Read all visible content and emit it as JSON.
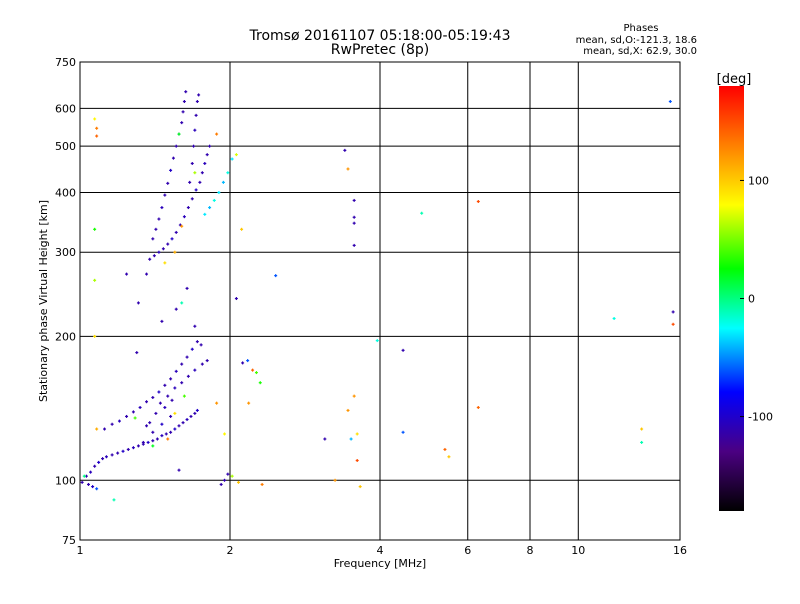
{
  "chart_data": {
    "type": "scatter",
    "title": "Tromsø 20161107 05:18:00-05:19:43",
    "subtitle": "RwPretec (8p)",
    "xlabel": "Frequency [MHz]",
    "ylabel": "Stationary phase Virtual Height [km]",
    "x_scale": "log",
    "y_scale": "log",
    "xlim": [
      1,
      16
    ],
    "ylim": [
      75,
      750
    ],
    "x_ticks": [
      1,
      2,
      4,
      6,
      8,
      10,
      16
    ],
    "x_tick_labels": [
      "1",
      "2",
      "4",
      "6",
      "8",
      "10",
      "16"
    ],
    "y_ticks": [
      75,
      100,
      200,
      300,
      400,
      500,
      600,
      750
    ],
    "y_tick_labels": [
      "75",
      "100",
      "200",
      "300",
      "400",
      "500",
      "600",
      "750"
    ],
    "grid": true,
    "stats": {
      "heading": "Phases",
      "line_o": "mean, sd,O:-121.3, 18.6",
      "line_x": "mean, sd,X:  62.9, 30.0"
    },
    "colorbar": {
      "label": "[deg]",
      "range": [
        -180,
        180
      ],
      "ticks": [
        100,
        0,
        -100
      ],
      "tick_labels": [
        "100",
        "0",
        "-100"
      ],
      "colors": [
        "#000000",
        "#4b0082",
        "#0000ff",
        "#00ffff",
        "#00ff00",
        "#ffff00",
        "#ff8000",
        "#ff0000"
      ]
    },
    "points": [
      [
        1.01,
        99,
        -110
      ],
      [
        1.03,
        102,
        -110
      ],
      [
        1.05,
        104,
        -105
      ],
      [
        1.07,
        107,
        -110
      ],
      [
        1.09,
        109,
        -100
      ],
      [
        1.11,
        111,
        -110
      ],
      [
        1.13,
        112,
        -105
      ],
      [
        1.16,
        113,
        -110
      ],
      [
        1.19,
        114,
        -110
      ],
      [
        1.22,
        115,
        -100
      ],
      [
        1.25,
        116,
        -110
      ],
      [
        1.28,
        117,
        -105
      ],
      [
        1.31,
        118,
        -110
      ],
      [
        1.34,
        119,
        -110
      ],
      [
        1.37,
        120,
        -100
      ],
      [
        1.4,
        121,
        -110
      ],
      [
        1.43,
        122,
        -110
      ],
      [
        1.46,
        124,
        -105
      ],
      [
        1.49,
        125,
        -110
      ],
      [
        1.52,
        126,
        -110
      ],
      [
        1.55,
        128,
        -100
      ],
      [
        1.58,
        130,
        -110
      ],
      [
        1.61,
        132,
        -110
      ],
      [
        1.64,
        134,
        -105
      ],
      [
        1.67,
        136,
        -110
      ],
      [
        1.7,
        138,
        -110
      ],
      [
        1.72,
        140,
        -100
      ],
      [
        1.12,
        128,
        -110
      ],
      [
        1.16,
        131,
        -110
      ],
      [
        1.2,
        133,
        -105
      ],
      [
        1.24,
        136,
        -110
      ],
      [
        1.28,
        139,
        -110
      ],
      [
        1.32,
        142,
        -105
      ],
      [
        1.36,
        146,
        -110
      ],
      [
        1.4,
        149,
        -110
      ],
      [
        1.44,
        153,
        -100
      ],
      [
        1.48,
        158,
        -110
      ],
      [
        1.52,
        163,
        -110
      ],
      [
        1.56,
        169,
        -105
      ],
      [
        1.6,
        175,
        -110
      ],
      [
        1.64,
        181,
        -110
      ],
      [
        1.68,
        188,
        -100
      ],
      [
        1.72,
        195,
        -110
      ],
      [
        1.75,
        192,
        -110
      ],
      [
        1.45,
        145,
        -110
      ],
      [
        1.5,
        150,
        -110
      ],
      [
        1.55,
        156,
        -105
      ],
      [
        1.6,
        160,
        -110
      ],
      [
        1.65,
        165,
        -110
      ],
      [
        1.7,
        170,
        -105
      ],
      [
        1.76,
        175,
        -110
      ],
      [
        1.8,
        178,
        -110
      ],
      [
        1.38,
        132,
        -110
      ],
      [
        1.42,
        138,
        -110
      ],
      [
        1.48,
        142,
        -105
      ],
      [
        1.53,
        147,
        -110
      ],
      [
        1.34,
        120,
        -110
      ],
      [
        1.4,
        126,
        -110
      ],
      [
        1.46,
        131,
        -100
      ],
      [
        1.52,
        136,
        -110
      ],
      [
        1.02,
        102,
        0
      ],
      [
        1.04,
        98,
        -110
      ],
      [
        1.06,
        97,
        -100
      ],
      [
        1.08,
        96,
        -60
      ],
      [
        1.17,
        91,
        -10
      ],
      [
        1.08,
        128,
        110
      ],
      [
        1.29,
        135,
        40
      ],
      [
        1.4,
        118,
        20
      ],
      [
        1.5,
        122,
        130
      ],
      [
        1.55,
        138,
        90
      ],
      [
        1.62,
        150,
        40
      ],
      [
        1.36,
        130,
        -110
      ],
      [
        1.3,
        185,
        -110
      ],
      [
        1.58,
        105,
        -110
      ],
      [
        1.92,
        98,
        -110
      ],
      [
        1.95,
        100,
        -110
      ],
      [
        1.98,
        103,
        -110
      ],
      [
        2.02,
        102,
        60
      ],
      [
        2.08,
        99,
        100
      ],
      [
        2.12,
        176,
        -110
      ],
      [
        2.17,
        178,
        -60
      ],
      [
        2.22,
        170,
        140
      ],
      [
        2.26,
        168,
        40
      ],
      [
        2.32,
        98,
        130
      ],
      [
        1.88,
        145,
        120
      ],
      [
        1.95,
        125,
        80
      ],
      [
        2.18,
        145,
        120
      ],
      [
        2.3,
        160,
        30
      ],
      [
        1.38,
        290,
        -110
      ],
      [
        1.41,
        295,
        -110
      ],
      [
        1.44,
        300,
        -105
      ],
      [
        1.47,
        305,
        -110
      ],
      [
        1.5,
        312,
        -110
      ],
      [
        1.53,
        320,
        -100
      ],
      [
        1.56,
        330,
        -110
      ],
      [
        1.59,
        342,
        -110
      ],
      [
        1.62,
        356,
        -105
      ],
      [
        1.65,
        372,
        -110
      ],
      [
        1.68,
        388,
        -110
      ],
      [
        1.71,
        405,
        -100
      ],
      [
        1.74,
        420,
        -110
      ],
      [
        1.76,
        440,
        -110
      ],
      [
        1.78,
        460,
        -105
      ],
      [
        1.8,
        480,
        -110
      ],
      [
        1.82,
        500,
        -110
      ],
      [
        1.4,
        320,
        -110
      ],
      [
        1.42,
        335,
        -110
      ],
      [
        1.44,
        352,
        -110
      ],
      [
        1.46,
        372,
        -105
      ],
      [
        1.48,
        395,
        -110
      ],
      [
        1.5,
        418,
        -110
      ],
      [
        1.52,
        445,
        -100
      ],
      [
        1.54,
        472,
        -110
      ],
      [
        1.56,
        500,
        -110
      ],
      [
        1.58,
        530,
        -105
      ],
      [
        1.6,
        560,
        -110
      ],
      [
        1.61,
        590,
        -110
      ],
      [
        1.62,
        620,
        -110
      ],
      [
        1.63,
        650,
        -110
      ],
      [
        1.66,
        420,
        -110
      ],
      [
        1.68,
        460,
        -110
      ],
      [
        1.69,
        500,
        -110
      ],
      [
        1.7,
        540,
        -105
      ],
      [
        1.71,
        580,
        -110
      ],
      [
        1.72,
        620,
        -110
      ],
      [
        1.73,
        640,
        -110
      ],
      [
        1.78,
        360,
        -30
      ],
      [
        1.82,
        372,
        -40
      ],
      [
        1.86,
        385,
        -20
      ],
      [
        1.9,
        400,
        -30
      ],
      [
        1.94,
        420,
        -40
      ],
      [
        1.98,
        440,
        -20
      ],
      [
        2.02,
        470,
        -30
      ],
      [
        2.06,
        480,
        70
      ],
      [
        1.88,
        530,
        130
      ],
      [
        1.48,
        285,
        90
      ],
      [
        1.55,
        300,
        110
      ],
      [
        1.6,
        340,
        120
      ],
      [
        1.7,
        440,
        60
      ],
      [
        1.58,
        530,
        20
      ],
      [
        1.36,
        270,
        -110
      ],
      [
        1.24,
        270,
        -110
      ],
      [
        1.31,
        235,
        -110
      ],
      [
        1.56,
        228,
        -110
      ],
      [
        1.64,
        252,
        -110
      ],
      [
        1.7,
        210,
        -110
      ],
      [
        1.6,
        235,
        -10
      ],
      [
        1.46,
        215,
        -110
      ],
      [
        1.07,
        570,
        80
      ],
      [
        1.08,
        545,
        130
      ],
      [
        1.08,
        525,
        140
      ],
      [
        1.07,
        335,
        30
      ],
      [
        1.07,
        262,
        60
      ],
      [
        1.07,
        200,
        90
      ],
      [
        2.06,
        240,
        -110
      ],
      [
        2.11,
        335,
        100
      ],
      [
        2.47,
        268,
        -60
      ],
      [
        3.1,
        122,
        -110
      ],
      [
        3.25,
        100,
        120
      ],
      [
        3.4,
        490,
        -110
      ],
      [
        3.45,
        448,
        120
      ],
      [
        3.55,
        385,
        -110
      ],
      [
        3.55,
        355,
        -110
      ],
      [
        3.55,
        345,
        -110
      ],
      [
        3.55,
        310,
        -110
      ],
      [
        3.45,
        140,
        120
      ],
      [
        3.5,
        122,
        -40
      ],
      [
        3.55,
        150,
        120
      ],
      [
        3.6,
        125,
        90
      ],
      [
        3.6,
        110,
        150
      ],
      [
        3.65,
        97,
        100
      ],
      [
        3.95,
        196,
        -20
      ],
      [
        4.45,
        187,
        -110
      ],
      [
        4.45,
        126,
        -60
      ],
      [
        4.85,
        362,
        -10
      ],
      [
        5.4,
        116,
        140
      ],
      [
        5.5,
        112,
        100
      ],
      [
        6.3,
        383,
        150
      ],
      [
        6.3,
        142,
        140
      ],
      [
        11.8,
        218,
        -20
      ],
      [
        13.4,
        128,
        100
      ],
      [
        13.4,
        120,
        -10
      ],
      [
        15.3,
        620,
        -60
      ],
      [
        15.5,
        225,
        -110
      ],
      [
        15.5,
        212,
        150
      ]
    ]
  }
}
